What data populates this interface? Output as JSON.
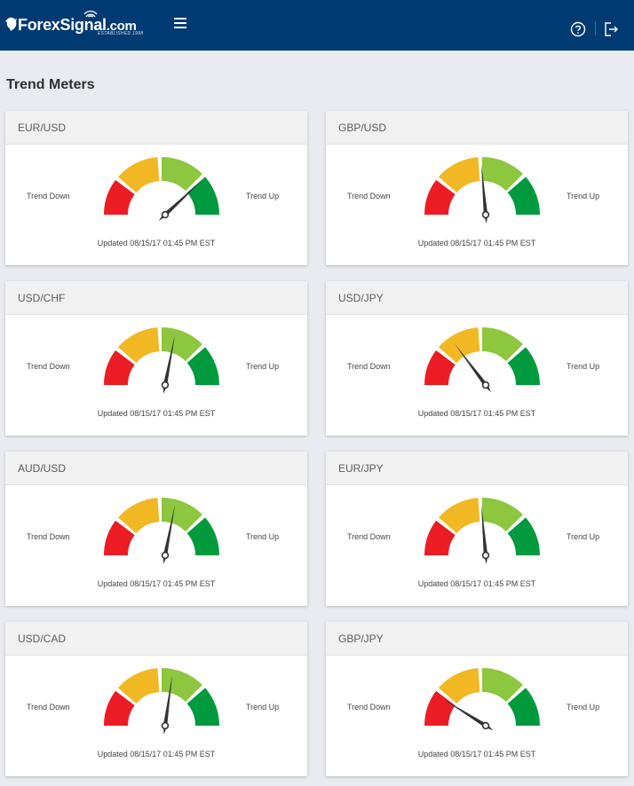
{
  "header": {
    "logo_text": "ForexSignal",
    "logo_suffix": ".com",
    "logo_tagline": "ESTABLISHED 1998",
    "icons": [
      "menu-icon",
      "help-icon",
      "logout-icon"
    ]
  },
  "page": {
    "title": "Trend Meters"
  },
  "colors": {
    "topbar": "#003a73",
    "red": "#ec1c24",
    "orange": "#f2b823",
    "light_green": "#8dc63f",
    "green": "#009a3e",
    "needle": "#333333"
  },
  "meters": [
    {
      "pair": "EUR/USD",
      "trend_down_label": "Trend Down",
      "trend_up_label": "Trend Up",
      "updated": "Updated 08/15/17 01:45 PM EST",
      "needle_deg": 47
    },
    {
      "pair": "GBP/USD",
      "trend_down_label": "Trend Down",
      "trend_up_label": "Trend Up",
      "updated": "Updated 08/15/17 01:45 PM EST",
      "needle_deg": -5
    },
    {
      "pair": "USD/CHF",
      "trend_down_label": "Trend Down",
      "trend_up_label": "Trend Up",
      "updated": "Updated 08/15/17 01:45 PM EST",
      "needle_deg": 11
    },
    {
      "pair": "USD/JPY",
      "trend_down_label": "Trend Down",
      "trend_up_label": "Trend Up",
      "updated": "Updated 08/15/17 01:45 PM EST",
      "needle_deg": -37
    },
    {
      "pair": "AUD/USD",
      "trend_down_label": "Trend Down",
      "trend_up_label": "Trend Up",
      "updated": "Updated 08/15/17 01:45 PM EST",
      "needle_deg": 11
    },
    {
      "pair": "EUR/JPY",
      "trend_down_label": "Trend Down",
      "trend_up_label": "Trend Up",
      "updated": "Updated 08/15/17 01:45 PM EST",
      "needle_deg": -5
    },
    {
      "pair": "USD/CAD",
      "trend_down_label": "Trend Down",
      "trend_up_label": "Trend Up",
      "updated": "Updated 08/15/17 01:45 PM EST",
      "needle_deg": 8
    },
    {
      "pair": "GBP/JPY",
      "trend_down_label": "Trend Down",
      "trend_up_label": "Trend Up",
      "updated": "Updated 08/15/17 01:45 PM EST",
      "needle_deg": -58
    }
  ]
}
